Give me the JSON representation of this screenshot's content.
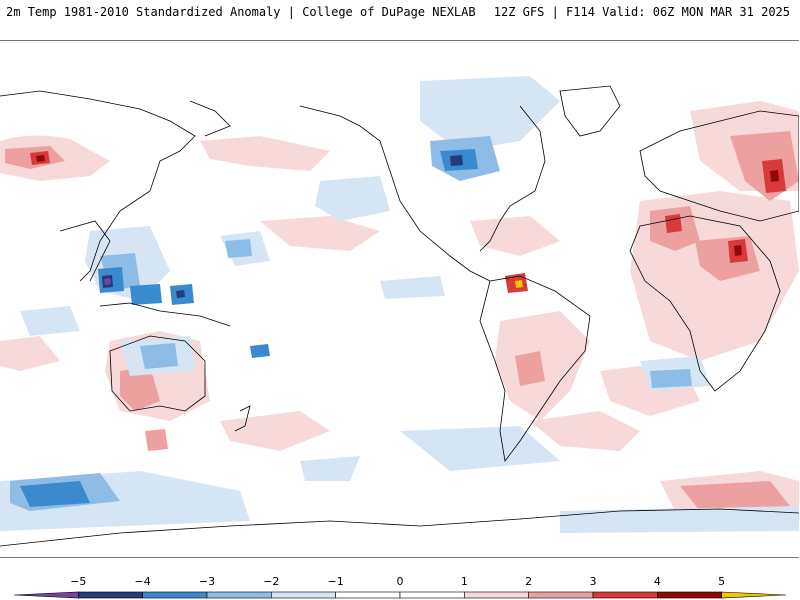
{
  "header": {
    "title_left": "2m Temp 1981-2010 Standardized Anomaly | College of DuPage NEXLAB",
    "title_right": "12Z GFS | F114 Valid: 06Z MON MAR 31 2025"
  },
  "colorbar": {
    "ticks": [
      {
        "value": -5,
        "label": "−5"
      },
      {
        "value": -4,
        "label": "−4"
      },
      {
        "value": -3,
        "label": "−3"
      },
      {
        "value": -2,
        "label": "−2"
      },
      {
        "value": -1,
        "label": "−1"
      },
      {
        "value": 0,
        "label": "0"
      },
      {
        "value": 1,
        "label": "1"
      },
      {
        "value": 2,
        "label": "2"
      },
      {
        "value": 3,
        "label": "3"
      },
      {
        "value": 4,
        "label": "4"
      },
      {
        "value": 5,
        "label": "5"
      }
    ],
    "segments": [
      {
        "from": -6,
        "to": -5,
        "color": "#7b3fa8"
      },
      {
        "from": -5,
        "to": -4,
        "color": "#263c78"
      },
      {
        "from": -4,
        "to": -3,
        "color": "#3a8ad0"
      },
      {
        "from": -3,
        "to": -2,
        "color": "#8dbde6"
      },
      {
        "from": -2,
        "to": -1,
        "color": "#d6e5f4"
      },
      {
        "from": -1,
        "to": 0,
        "color": "#ffffff"
      },
      {
        "from": 0,
        "to": 1,
        "color": "#ffffff"
      },
      {
        "from": 1,
        "to": 2,
        "color": "#f7d9d9"
      },
      {
        "from": 2,
        "to": 3,
        "color": "#eda0a0"
      },
      {
        "from": 3,
        "to": 4,
        "color": "#d83a3a"
      },
      {
        "from": 4,
        "to": 5,
        "color": "#8e0a0a"
      },
      {
        "from": 5,
        "to": 6,
        "color": "#f6c400"
      }
    ]
  },
  "map": {
    "projection": "equirectangular, Pacific-centered",
    "colors": {
      "light_blue": "#d6e5f4",
      "mid_blue": "#8dbde6",
      "blue": "#3a8ad0",
      "dark_blue": "#263c78",
      "purple": "#7b3fa8",
      "light_red": "#f7d9d9",
      "mid_red": "#eda0a0",
      "red": "#d83a3a",
      "dark_red": "#8e0a0a",
      "yellow": "#f6c400",
      "coastline": "#000000"
    }
  }
}
